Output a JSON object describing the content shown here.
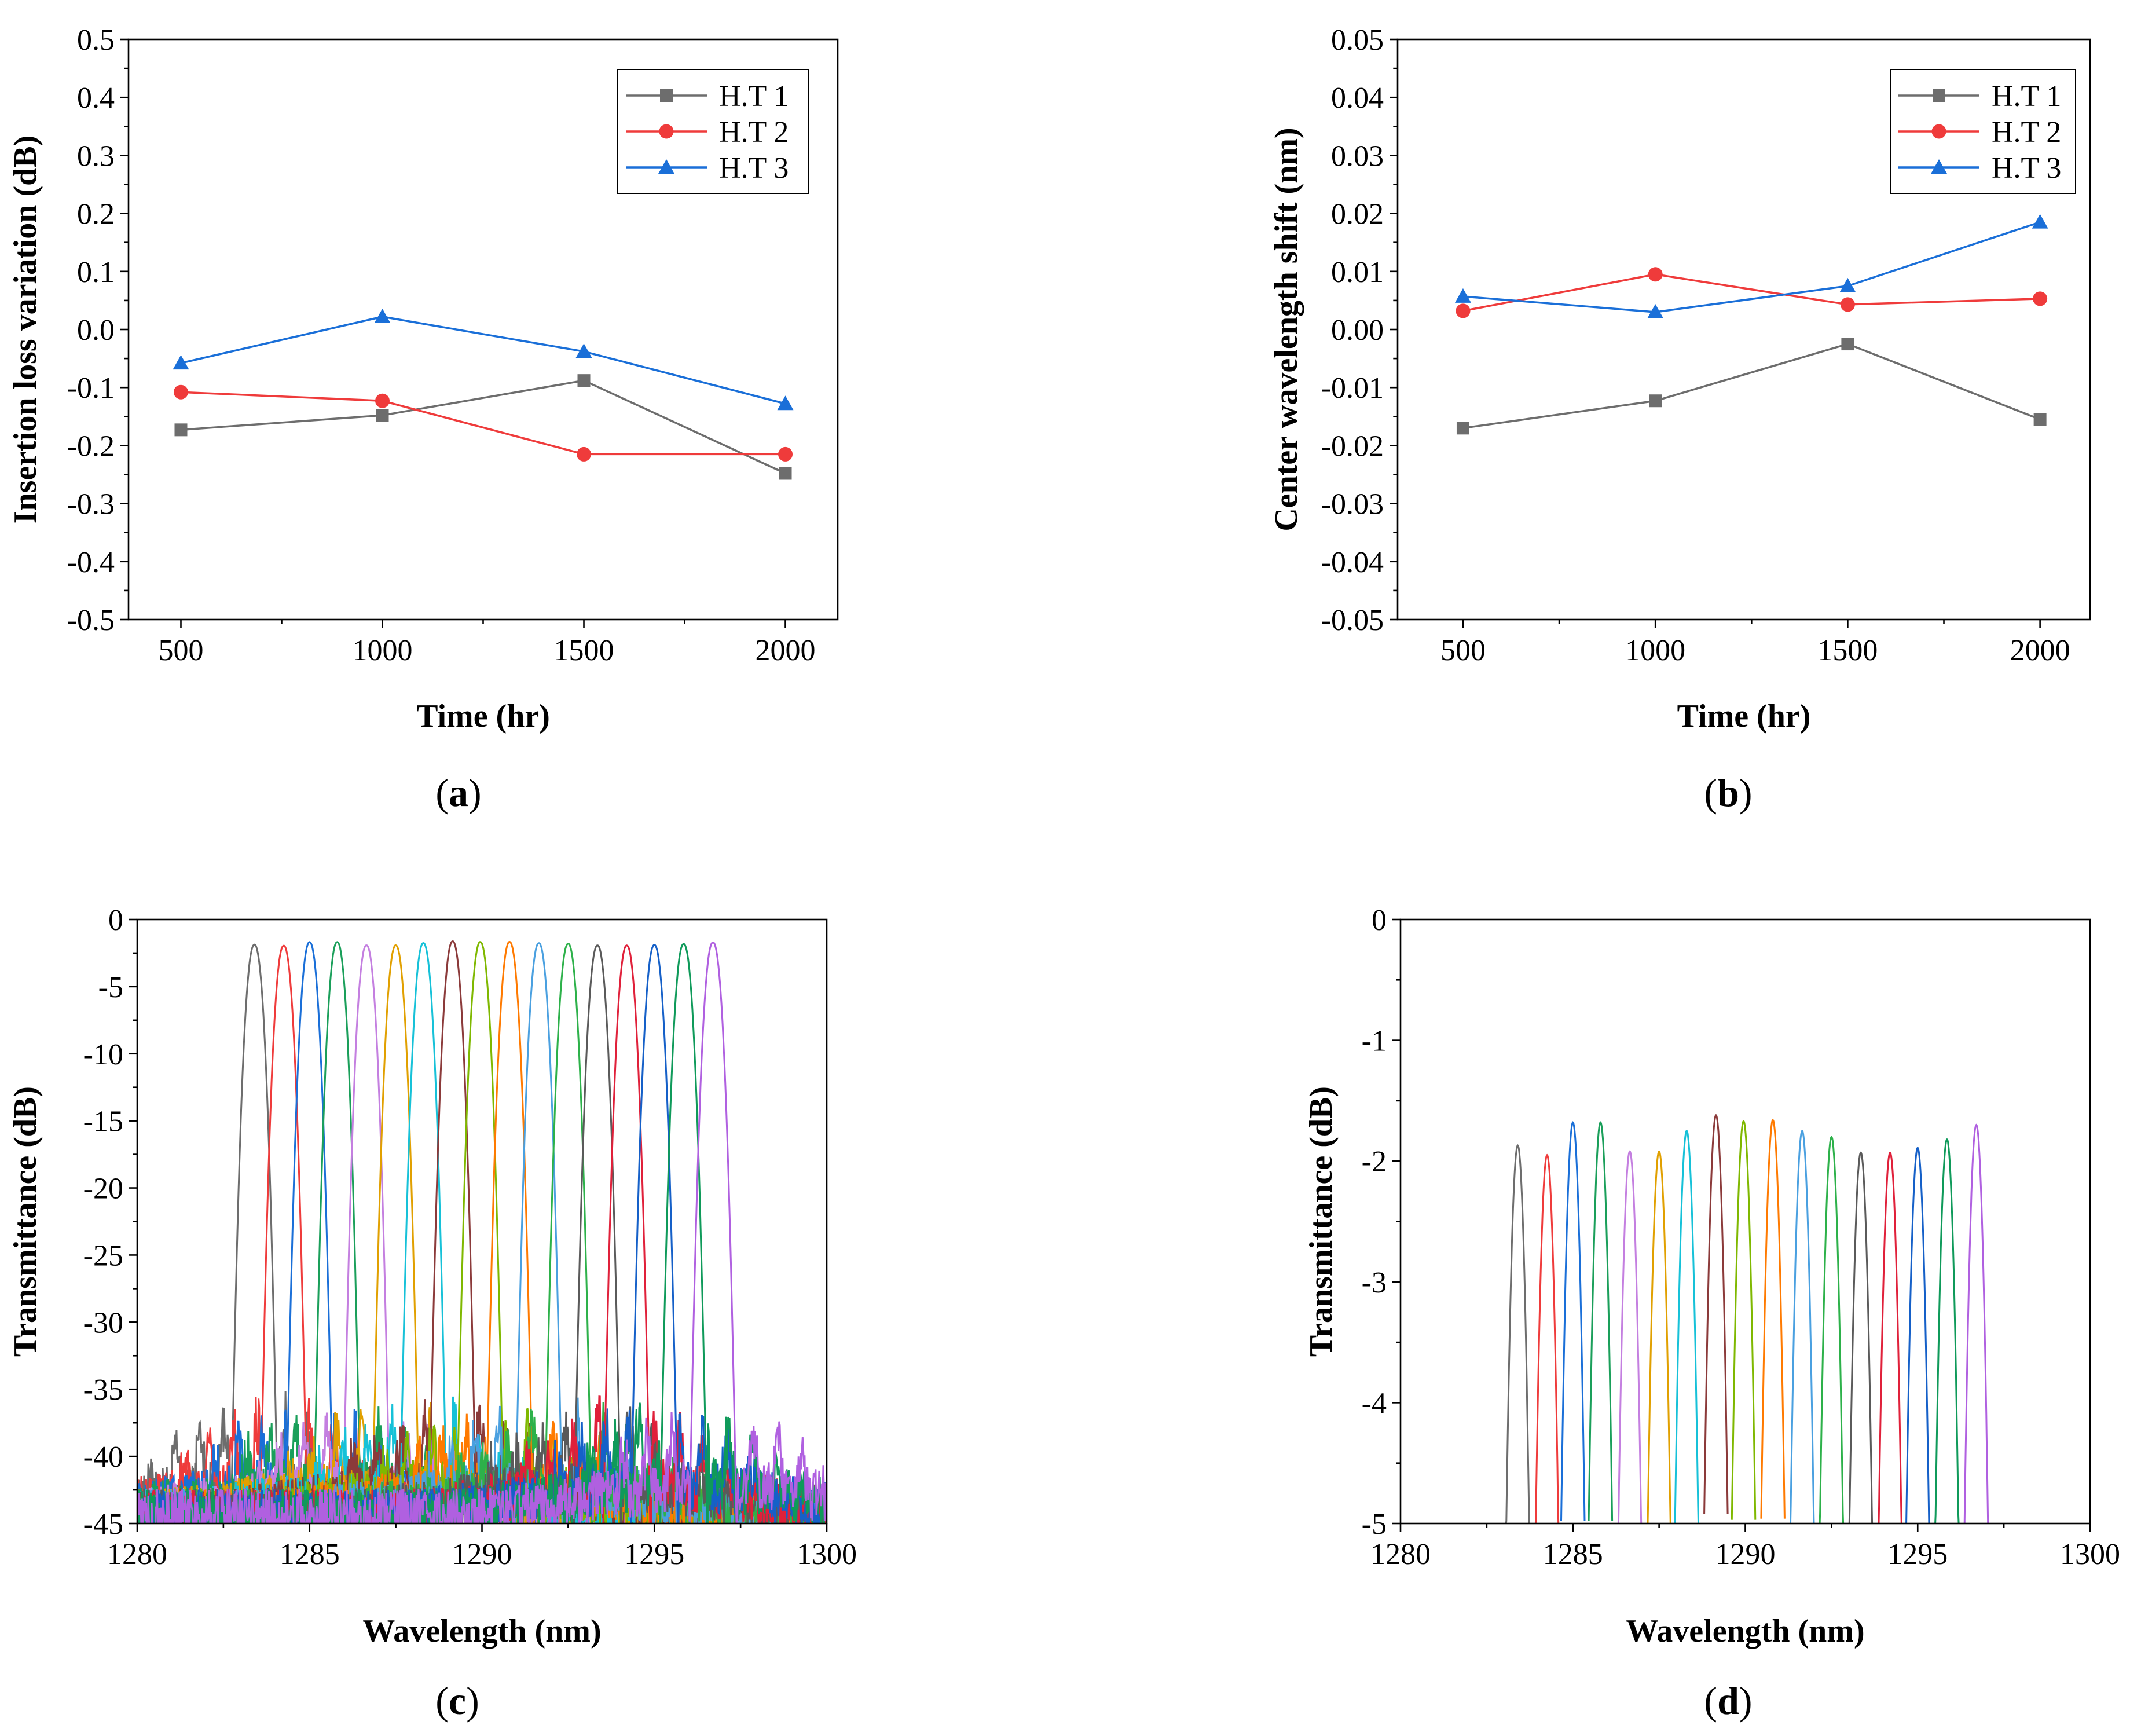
{
  "panels": [
    {
      "id": "a",
      "caption": "a",
      "chart_data": {
        "type": "line",
        "title": "",
        "xlabel": "Time (hr)",
        "ylabel": "Insertion loss variation (dB)",
        "xlim": [
          370,
          2130
        ],
        "ylim": [
          -0.5,
          0.5
        ],
        "xticks": [
          500,
          1000,
          1500,
          2000
        ],
        "xtick_labels": [
          "500",
          "1000",
          "1500",
          "2000"
        ],
        "yticks": [
          -0.5,
          -0.4,
          -0.3,
          -0.2,
          -0.1,
          0.0,
          0.1,
          0.2,
          0.3,
          0.4,
          0.5
        ],
        "ytick_labels": [
          "-0.5",
          "-0.4",
          "-0.3",
          "-0.2",
          "-0.1",
          "0.0",
          "0.1",
          "0.2",
          "0.3",
          "0.4",
          "0.5"
        ],
        "legend": "top-right",
        "series": [
          {
            "name": "H.T 1",
            "color": "#6d6d6d",
            "marker": "square",
            "x": [
              500,
              1000,
              1500,
              2000
            ],
            "y": [
              -0.173,
              -0.148,
              -0.088,
              -0.248
            ]
          },
          {
            "name": "H.T 2",
            "color": "#ef3b3b",
            "marker": "circle",
            "x": [
              500,
              1000,
              1500,
              2000
            ],
            "y": [
              -0.108,
              -0.123,
              -0.215,
              -0.215
            ]
          },
          {
            "name": "H.T 3",
            "color": "#1a6fd8",
            "marker": "triangle",
            "x": [
              500,
              1000,
              1500,
              2000
            ],
            "y": [
              -0.058,
              0.022,
              -0.038,
              -0.128
            ]
          }
        ]
      }
    },
    {
      "id": "b",
      "caption": "b",
      "chart_data": {
        "type": "line",
        "title": "",
        "xlabel": "Time (hr)",
        "ylabel": "Center wavelength shift (nm)",
        "xlim": [
          330,
          2130
        ],
        "ylim": [
          -0.05,
          0.05
        ],
        "xticks": [
          500,
          1000,
          1500,
          2000
        ],
        "xtick_labels": [
          "500",
          "1000",
          "1500",
          "2000"
        ],
        "yticks": [
          -0.05,
          -0.04,
          -0.03,
          -0.02,
          -0.01,
          0.0,
          0.01,
          0.02,
          0.03,
          0.04,
          0.05
        ],
        "ytick_labels": [
          "-0.05",
          "-0.04",
          "-0.03",
          "-0.02",
          "-0.01",
          "0.00",
          "0.01",
          "0.02",
          "0.03",
          "0.04",
          "0.05"
        ],
        "legend": "top-right",
        "series": [
          {
            "name": "H.T 1",
            "color": "#6d6d6d",
            "marker": "square",
            "x": [
              500,
              1000,
              1500,
              2000
            ],
            "y": [
              -0.017,
              -0.0123,
              -0.0025,
              -0.0155
            ]
          },
          {
            "name": "H.T 2",
            "color": "#ef3b3b",
            "marker": "circle",
            "x": [
              500,
              1000,
              1500,
              2000
            ],
            "y": [
              0.0032,
              0.0095,
              0.0043,
              0.0053
            ]
          },
          {
            "name": "H.T 3",
            "color": "#1a6fd8",
            "marker": "triangle",
            "x": [
              500,
              1000,
              1500,
              2000
            ],
            "y": [
              0.0057,
              0.003,
              0.0075,
              0.0185
            ]
          }
        ]
      }
    },
    {
      "id": "c",
      "caption": "c",
      "chart_data": {
        "type": "line",
        "title": "",
        "xlabel": "Wavelength (nm)",
        "ylabel": "Transmittance (dB)",
        "xlim": [
          1280,
          1300
        ],
        "ylim": [
          -45,
          0
        ],
        "xticks": [
          1280,
          1285,
          1290,
          1295,
          1300
        ],
        "xtick_labels": [
          "1280",
          "1285",
          "1290",
          "1295",
          "1300"
        ],
        "yticks": [
          -45,
          -40,
          -35,
          -30,
          -25,
          -20,
          -15,
          -10,
          -5,
          0
        ],
        "ytick_labels": [
          "-45",
          "-40",
          "-35",
          "-30",
          "-25",
          "-20",
          "-15",
          "-10",
          "-5",
          "0"
        ],
        "legend": "none",
        "channel_colors": [
          "#6d6d6d",
          "#ef3b3b",
          "#1a6fd8",
          "#1a9f5a",
          "#c47fe0",
          "#e1a000",
          "#16c1d8",
          "#8b3a3a",
          "#7fb800",
          "#ff7a00",
          "#4aa0e0",
          "#2db14a",
          "#5a5a5a",
          "#e0203a",
          "#1560c8",
          "#0f9a5a",
          "#b060e0"
        ],
        "channel_centers_nm": [
          1283.4,
          1284.25,
          1285.0,
          1285.8,
          1286.65,
          1287.5,
          1288.3,
          1289.15,
          1289.95,
          1290.8,
          1291.65,
          1292.5,
          1293.35,
          1294.2,
          1295.0,
          1295.85,
          1296.7
        ],
        "channel_peaks_db": [
          -1.87,
          -1.95,
          -1.68,
          -1.68,
          -1.92,
          -1.92,
          -1.75,
          -1.62,
          -1.67,
          -1.66,
          -1.75,
          -1.8,
          -1.93,
          -1.93,
          -1.89,
          -1.82,
          -1.7
        ],
        "channel_halfwidth_at_noise_floor_nm": 0.7,
        "noise_floor_db": [
          -45,
          -35
        ]
      }
    },
    {
      "id": "d",
      "caption": "d",
      "chart_data": {
        "type": "line",
        "title": "",
        "xlabel": "Wavelength (nm)",
        "ylabel": "Transmittance (dB)",
        "xlim": [
          1280,
          1300
        ],
        "ylim": [
          -5,
          0
        ],
        "xticks": [
          1280,
          1285,
          1290,
          1295,
          1300
        ],
        "xtick_labels": [
          "1280",
          "1285",
          "1290",
          "1295",
          "1300"
        ],
        "yticks": [
          -5,
          -4,
          -3,
          -2,
          -1,
          0
        ],
        "ytick_labels": [
          "-5",
          "-4",
          "-3",
          "-2",
          "-1",
          "0"
        ],
        "legend": "none",
        "channel_colors": [
          "#6d6d6d",
          "#ef3b3b",
          "#1a6fd8",
          "#1a9f5a",
          "#c47fe0",
          "#e1a000",
          "#16c1d8",
          "#8b3a3a",
          "#7fb800",
          "#ff7a00",
          "#4aa0e0",
          "#2db14a",
          "#5a5a5a",
          "#e0203a",
          "#1560c8",
          "#0f9a5a",
          "#b060e0"
        ],
        "channel_centers_nm": [
          1283.4,
          1284.25,
          1285.0,
          1285.8,
          1286.65,
          1287.5,
          1288.3,
          1289.15,
          1289.95,
          1290.8,
          1291.65,
          1292.5,
          1293.35,
          1294.2,
          1295.0,
          1295.85,
          1296.7
        ],
        "channel_peaks_db": [
          -1.87,
          -1.95,
          -1.68,
          -1.68,
          -1.92,
          -1.92,
          -1.75,
          -1.62,
          -1.67,
          -1.66,
          -1.75,
          -1.8,
          -1.93,
          -1.93,
          -1.89,
          -1.82,
          -1.7
        ]
      }
    }
  ]
}
